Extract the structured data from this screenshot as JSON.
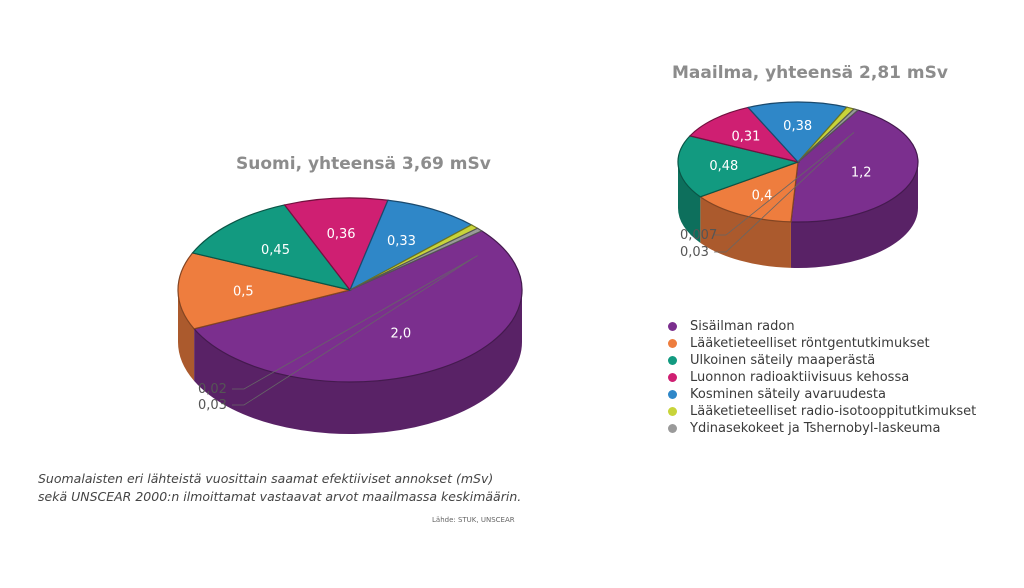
{
  "caption": {
    "line1": "Suomalaisten eri lähteistä vuosittain saamat efektiiviset annokset (mSv)",
    "line2": "sekä UNSCEAR 2000:n ilmoittamat vastaavat arvot maailmassa keskimäärin.",
    "source": "Lähde: STUK, UNSCEAR"
  },
  "chart_data": [
    {
      "type": "pie",
      "title": "Suomi, yhteensä 3,69 mSv",
      "categories": [
        "Sisäilman radon",
        "Lääketieteelliset röntgentutkimukset",
        "Ulkoinen säteily maaperästä",
        "Luonnon radioaktiivisuus kehossa",
        "Kosminen säteily avaruudesta",
        "Lääketieteelliset radio-isotooppitutkimukset",
        "Ydinasekokeet ja Tshernobyl-laskeuma"
      ],
      "values": [
        2.0,
        0.5,
        0.45,
        0.36,
        0.33,
        0.03,
        0.02
      ],
      "labels": [
        "2,0",
        "0,5",
        "0,45",
        "0,36",
        "0,33",
        "0,03",
        "0,02"
      ]
    },
    {
      "type": "pie",
      "title": "Maailma, yhteensä 2,81 mSv",
      "categories": [
        "Sisäilman radon",
        "Lääketieteelliset röntgentutkimukset",
        "Ulkoinen säteily maaperästä",
        "Luonnon radioaktiivisuus kehossa",
        "Kosminen säteily avaruudesta",
        "Lääketieteelliset radio-isotooppitutkimukset",
        "Ydinasekokeet ja Tshernobyl-laskeuma"
      ],
      "values": [
        1.2,
        0.4,
        0.48,
        0.31,
        0.38,
        0.03,
        0.007
      ],
      "labels": [
        "1,2",
        "0,4",
        "0,48",
        "0,31",
        "0,38",
        "0,03",
        "0,007"
      ]
    }
  ],
  "legend": [
    {
      "label": "Sisäilman radon",
      "color": "#7b2f8e"
    },
    {
      "label": "Lääketieteelliset röntgentutkimukset",
      "color": "#ee7d3e"
    },
    {
      "label": "Ulkoinen säteily maaperästä",
      "color": "#129a80"
    },
    {
      "label": "Luonnon radioaktiivisuus kehossa",
      "color": "#cf1f72"
    },
    {
      "label": "Kosminen säteily avaruudesta",
      "color": "#2f87c8"
    },
    {
      "label": "Lääketieteelliset radio-isotooppitutkimukset",
      "color": "#c8d43a"
    },
    {
      "label": "Ydinasekokeet ja Tshernobyl-laskeuma",
      "color": "#9a9a9a"
    }
  ]
}
